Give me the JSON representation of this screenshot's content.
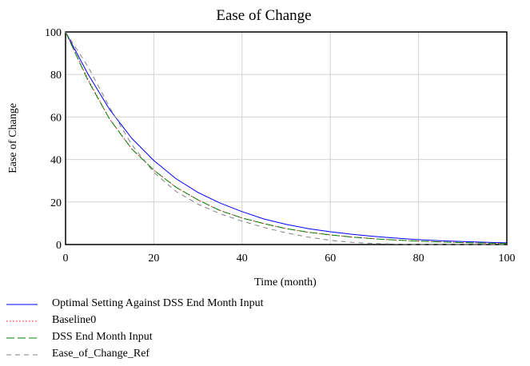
{
  "chart_data": {
    "type": "line",
    "title": "Ease of Change",
    "xlabel": "Time (month)",
    "ylabel": "Ease of Change",
    "xlim": [
      0,
      100
    ],
    "ylim": [
      0,
      100
    ],
    "xticks": [
      0,
      20,
      40,
      60,
      80,
      100
    ],
    "yticks": [
      0,
      20,
      40,
      60,
      80,
      100
    ],
    "grid": true,
    "legend_position": "bottom",
    "x": [
      0,
      5,
      10,
      15,
      20,
      25,
      30,
      35,
      40,
      45,
      50,
      55,
      60,
      65,
      70,
      75,
      80,
      85,
      90,
      95,
      100
    ],
    "series": [
      {
        "name": "Optimal Setting Against DSS End Month Input",
        "color": "#0000ff",
        "dash": "solid",
        "values": [
          100,
          80.5,
          63.5,
          50,
          39.5,
          31,
          24.5,
          19.5,
          15.5,
          12,
          9.5,
          7.5,
          6,
          4.8,
          3.8,
          3,
          2.3,
          1.8,
          1.4,
          1.1,
          0.8
        ]
      },
      {
        "name": "Baseline0",
        "color": "#ff0000",
        "dash": "dot",
        "values": [
          100,
          78,
          59,
          45,
          35,
          27,
          21,
          16,
          12.5,
          9.8,
          7.5,
          5.8,
          4.5,
          3.5,
          2.7,
          2.1,
          1.6,
          1.2,
          0.9,
          0.7,
          0.5
        ]
      },
      {
        "name": "DSS End Month Input",
        "color": "#008000",
        "dash": "dash",
        "values": [
          100,
          77.5,
          59,
          45,
          35,
          27,
          21,
          16,
          12.5,
          9.8,
          7.5,
          5.8,
          4.5,
          3.5,
          2.7,
          2.1,
          1.6,
          1.2,
          0.9,
          0.7,
          0.5
        ]
      },
      {
        "name": "Ease_of_Change_Ref",
        "color": "#808080",
        "dash": "dash-light",
        "values": [
          100,
          84,
          64.5,
          47,
          34,
          25,
          19,
          14.5,
          11,
          8,
          5.5,
          3.5,
          2,
          1,
          0.5,
          0.2,
          0,
          0,
          0,
          0,
          0
        ]
      }
    ]
  }
}
